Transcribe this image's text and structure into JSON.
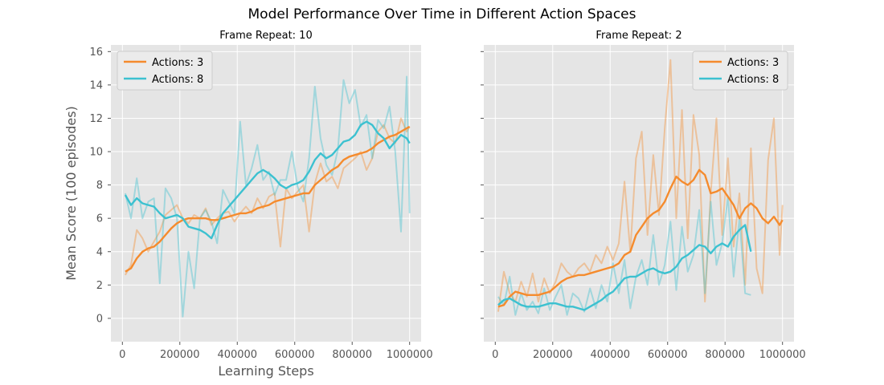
{
  "figure": {
    "title": "Model Performance Over Time in Different Action Spaces"
  },
  "colors": {
    "actions3": "#f58b2d",
    "actions8": "#3cc1d0",
    "plot_bg": "#e5e5e5",
    "grid": "#ffffff",
    "tick_text": "#555555"
  },
  "chart_data": [
    {
      "type": "line",
      "title": "Frame Repeat: 10",
      "xlabel": "Learning Steps",
      "ylabel": "Mean Score (100 episodes)",
      "xlim": [
        -40000,
        1040000
      ],
      "ylim": [
        -1.4,
        16.4
      ],
      "xticks": [
        0,
        200000,
        400000,
        600000,
        800000,
        1000000
      ],
      "xtick_labels": [
        "0",
        "200000",
        "400000",
        "600000",
        "800000",
        "1000000"
      ],
      "yticks": [
        0,
        2,
        4,
        6,
        8,
        10,
        12,
        14,
        16
      ],
      "ytick_labels": [
        "0",
        "2",
        "4",
        "6",
        "8",
        "10",
        "12",
        "14",
        "16"
      ],
      "grid": true,
      "legend": "top-left",
      "series": [
        {
          "name": "Actions: 3",
          "color_key": "actions3",
          "raw_x": [
            10000,
            30000,
            50000,
            70000,
            90000,
            110000,
            130000,
            150000,
            170000,
            190000,
            210000,
            230000,
            250000,
            270000,
            290000,
            310000,
            330000,
            350000,
            370000,
            390000,
            410000,
            430000,
            450000,
            470000,
            490000,
            510000,
            530000,
            550000,
            570000,
            590000,
            610000,
            630000,
            650000,
            670000,
            690000,
            710000,
            730000,
            750000,
            770000,
            790000,
            810000,
            830000,
            850000,
            870000,
            890000,
            910000,
            930000,
            950000,
            970000,
            990000,
            1000000
          ],
          "raw_y": [
            2.6,
            3.2,
            5.3,
            4.8,
            4.0,
            4.6,
            5.2,
            6.2,
            6.5,
            6.8,
            6.0,
            5.7,
            6.2,
            6.0,
            6.6,
            5.6,
            6.0,
            6.3,
            6.4,
            5.8,
            6.3,
            6.7,
            6.3,
            7.2,
            6.6,
            7.3,
            7.5,
            4.3,
            7.8,
            7.2,
            7.6,
            8.0,
            5.2,
            8.1,
            9.3,
            8.2,
            8.5,
            7.8,
            9.0,
            9.3,
            9.6,
            10.0,
            8.9,
            9.6,
            11.2,
            11.6,
            10.8,
            10.5,
            12.0,
            11.2,
            11.5
          ],
          "x": [
            10000,
            30000,
            50000,
            70000,
            90000,
            110000,
            130000,
            150000,
            170000,
            190000,
            210000,
            230000,
            250000,
            270000,
            290000,
            310000,
            330000,
            350000,
            370000,
            390000,
            410000,
            430000,
            450000,
            470000,
            490000,
            510000,
            530000,
            550000,
            570000,
            590000,
            610000,
            630000,
            650000,
            670000,
            690000,
            710000,
            730000,
            750000,
            770000,
            790000,
            810000,
            830000,
            850000,
            870000,
            890000,
            910000,
            930000,
            950000,
            970000,
            990000,
            1000000
          ],
          "y": [
            2.8,
            3.0,
            3.6,
            4.0,
            4.2,
            4.3,
            4.6,
            5.0,
            5.4,
            5.7,
            5.9,
            6.0,
            6.0,
            6.0,
            6.0,
            5.9,
            5.9,
            6.0,
            6.1,
            6.2,
            6.3,
            6.3,
            6.4,
            6.6,
            6.7,
            6.8,
            7.0,
            7.1,
            7.2,
            7.3,
            7.4,
            7.5,
            7.5,
            8.0,
            8.3,
            8.6,
            8.9,
            9.1,
            9.5,
            9.7,
            9.8,
            9.9,
            10.0,
            10.2,
            10.5,
            10.7,
            10.9,
            11.0,
            11.2,
            11.4,
            11.5
          ]
        },
        {
          "name": "Actions: 8",
          "color_key": "actions8",
          "raw_x": [
            10000,
            30000,
            50000,
            70000,
            90000,
            110000,
            130000,
            150000,
            170000,
            190000,
            210000,
            230000,
            250000,
            270000,
            290000,
            310000,
            330000,
            350000,
            370000,
            390000,
            410000,
            430000,
            450000,
            470000,
            490000,
            510000,
            530000,
            550000,
            570000,
            590000,
            610000,
            630000,
            650000,
            670000,
            690000,
            710000,
            730000,
            750000,
            770000,
            790000,
            810000,
            830000,
            850000,
            870000,
            890000,
            910000,
            930000,
            950000,
            970000,
            990000,
            1000000
          ],
          "raw_y": [
            7.5,
            6.0,
            8.4,
            6.0,
            7.0,
            7.2,
            2.1,
            7.8,
            7.2,
            6.0,
            0.1,
            4.0,
            1.8,
            6.0,
            6.5,
            5.8,
            4.5,
            7.7,
            7.0,
            6.3,
            11.8,
            8.0,
            9.0,
            10.4,
            8.3,
            8.8,
            7.4,
            8.3,
            8.3,
            10.0,
            7.9,
            7.0,
            9.6,
            13.9,
            10.8,
            9.2,
            8.6,
            10.1,
            14.3,
            12.9,
            13.7,
            11.5,
            12.2,
            9.6,
            11.9,
            11.4,
            12.7,
            10.0,
            5.2,
            14.5,
            6.3
          ],
          "x": [
            10000,
            30000,
            50000,
            70000,
            90000,
            110000,
            130000,
            150000,
            170000,
            190000,
            210000,
            230000,
            250000,
            270000,
            290000,
            310000,
            330000,
            350000,
            370000,
            390000,
            410000,
            430000,
            450000,
            470000,
            490000,
            510000,
            530000,
            550000,
            570000,
            590000,
            610000,
            630000,
            650000,
            670000,
            690000,
            710000,
            730000,
            750000,
            770000,
            790000,
            810000,
            830000,
            850000,
            870000,
            890000,
            910000,
            930000,
            950000,
            970000,
            990000,
            1000000
          ],
          "y": [
            7.4,
            6.8,
            7.2,
            6.9,
            6.8,
            6.7,
            6.3,
            6.0,
            6.1,
            6.2,
            6.0,
            5.5,
            5.4,
            5.3,
            5.1,
            4.8,
            5.6,
            6.3,
            6.7,
            7.1,
            7.5,
            7.9,
            8.3,
            8.7,
            8.9,
            8.7,
            8.4,
            8.0,
            7.8,
            8.0,
            8.1,
            8.3,
            8.8,
            9.5,
            9.9,
            9.6,
            9.8,
            10.2,
            10.6,
            10.7,
            11.0,
            11.6,
            11.8,
            11.6,
            11.1,
            10.8,
            10.2,
            10.6,
            11.0,
            10.8,
            10.5
          ]
        }
      ]
    },
    {
      "type": "line",
      "title": "Frame Repeat: 2",
      "xlabel": "",
      "ylabel": "",
      "xlim": [
        -40000,
        1040000
      ],
      "ylim": [
        -1.4,
        16.4
      ],
      "xticks": [
        0,
        200000,
        400000,
        600000,
        800000,
        1000000
      ],
      "xtick_labels": [
        "0",
        "200000",
        "400000",
        "600000",
        "800000",
        "1000000"
      ],
      "yticks": [
        0,
        2,
        4,
        6,
        8,
        10,
        12,
        14,
        16
      ],
      "ytick_labels": [],
      "grid": true,
      "legend": "top-right",
      "series": [
        {
          "name": "Actions: 3",
          "color_key": "actions3",
          "raw_x": [
            10000,
            30000,
            50000,
            70000,
            90000,
            110000,
            130000,
            150000,
            170000,
            190000,
            210000,
            230000,
            250000,
            270000,
            290000,
            310000,
            330000,
            350000,
            370000,
            390000,
            410000,
            430000,
            450000,
            470000,
            490000,
            510000,
            530000,
            550000,
            570000,
            590000,
            610000,
            630000,
            650000,
            670000,
            690000,
            710000,
            730000,
            750000,
            770000,
            790000,
            810000,
            830000,
            850000,
            870000,
            890000,
            910000,
            930000,
            950000,
            970000,
            990000,
            1000000
          ],
          "raw_y": [
            0.4,
            2.8,
            1.5,
            1.0,
            2.2,
            1.3,
            2.7,
            1.0,
            2.4,
            1.5,
            2.2,
            3.3,
            2.8,
            2.5,
            3.0,
            3.3,
            2.8,
            3.8,
            3.3,
            4.3,
            3.5,
            4.5,
            8.2,
            4.0,
            9.6,
            11.2,
            5.0,
            9.8,
            6.2,
            11.4,
            15.5,
            6.0,
            12.5,
            4.8,
            12.2,
            9.8,
            1.0,
            7.5,
            12.0,
            5.0,
            9.6,
            4.3,
            7.5,
            2.0,
            10.2,
            3.0,
            1.5,
            9.5,
            12.0,
            3.8,
            6.8
          ],
          "x": [
            10000,
            30000,
            50000,
            70000,
            90000,
            110000,
            130000,
            150000,
            170000,
            190000,
            210000,
            230000,
            250000,
            270000,
            290000,
            310000,
            330000,
            350000,
            370000,
            390000,
            410000,
            430000,
            450000,
            470000,
            490000,
            510000,
            530000,
            550000,
            570000,
            590000,
            610000,
            630000,
            650000,
            670000,
            690000,
            710000,
            730000,
            750000,
            770000,
            790000,
            810000,
            830000,
            850000,
            870000,
            890000,
            910000,
            930000,
            950000,
            970000,
            990000,
            1000000
          ],
          "y": [
            0.7,
            0.8,
            1.3,
            1.6,
            1.5,
            1.4,
            1.4,
            1.4,
            1.5,
            1.6,
            1.9,
            2.2,
            2.4,
            2.5,
            2.6,
            2.6,
            2.7,
            2.8,
            2.9,
            3.0,
            3.1,
            3.3,
            3.8,
            4.0,
            5.0,
            5.5,
            6.0,
            6.3,
            6.5,
            7.0,
            7.8,
            8.5,
            8.2,
            8.0,
            8.3,
            8.9,
            8.6,
            7.5,
            7.6,
            7.8,
            7.3,
            6.8,
            6.0,
            6.6,
            6.9,
            6.6,
            6.0,
            5.7,
            6.1,
            5.6,
            5.9
          ]
        },
        {
          "name": "Actions: 8",
          "color_key": "actions8",
          "raw_x": [
            10000,
            30000,
            50000,
            70000,
            90000,
            110000,
            130000,
            150000,
            170000,
            190000,
            210000,
            230000,
            250000,
            270000,
            290000,
            310000,
            330000,
            350000,
            370000,
            390000,
            410000,
            430000,
            450000,
            470000,
            490000,
            510000,
            530000,
            550000,
            570000,
            590000,
            610000,
            630000,
            650000,
            670000,
            690000,
            710000,
            730000,
            750000,
            770000,
            790000,
            810000,
            830000,
            850000,
            870000,
            890000
          ],
          "raw_y": [
            1.3,
            0.8,
            2.5,
            0.2,
            1.5,
            0.5,
            1.0,
            0.3,
            1.8,
            0.5,
            1.3,
            2.0,
            0.2,
            1.5,
            1.2,
            0.4,
            1.8,
            0.6,
            2.0,
            1.0,
            3.3,
            1.5,
            3.5,
            0.6,
            2.5,
            3.5,
            2.0,
            5.0,
            2.0,
            3.2,
            5.8,
            1.7,
            5.5,
            2.8,
            3.8,
            6.5,
            1.5,
            7.0,
            3.2,
            4.5,
            7.3,
            2.5,
            6.0,
            1.5,
            1.4
          ],
          "x": [
            10000,
            30000,
            50000,
            70000,
            90000,
            110000,
            130000,
            150000,
            170000,
            190000,
            210000,
            230000,
            250000,
            270000,
            290000,
            310000,
            330000,
            350000,
            370000,
            390000,
            410000,
            430000,
            450000,
            470000,
            490000,
            510000,
            530000,
            550000,
            570000,
            590000,
            610000,
            630000,
            650000,
            670000,
            690000,
            710000,
            730000,
            750000,
            770000,
            790000,
            810000,
            830000,
            850000,
            870000,
            890000
          ],
          "y": [
            0.8,
            1.1,
            1.2,
            1.0,
            0.8,
            0.7,
            0.7,
            0.7,
            0.8,
            0.9,
            0.9,
            0.8,
            0.7,
            0.7,
            0.6,
            0.5,
            0.7,
            0.9,
            1.1,
            1.4,
            1.6,
            2.0,
            2.4,
            2.5,
            2.5,
            2.7,
            2.9,
            3.0,
            2.8,
            2.7,
            2.8,
            3.1,
            3.6,
            3.8,
            4.1,
            4.4,
            4.3,
            3.9,
            4.3,
            4.5,
            4.3,
            4.9,
            5.3,
            5.6,
            4.0
          ]
        }
      ]
    }
  ]
}
